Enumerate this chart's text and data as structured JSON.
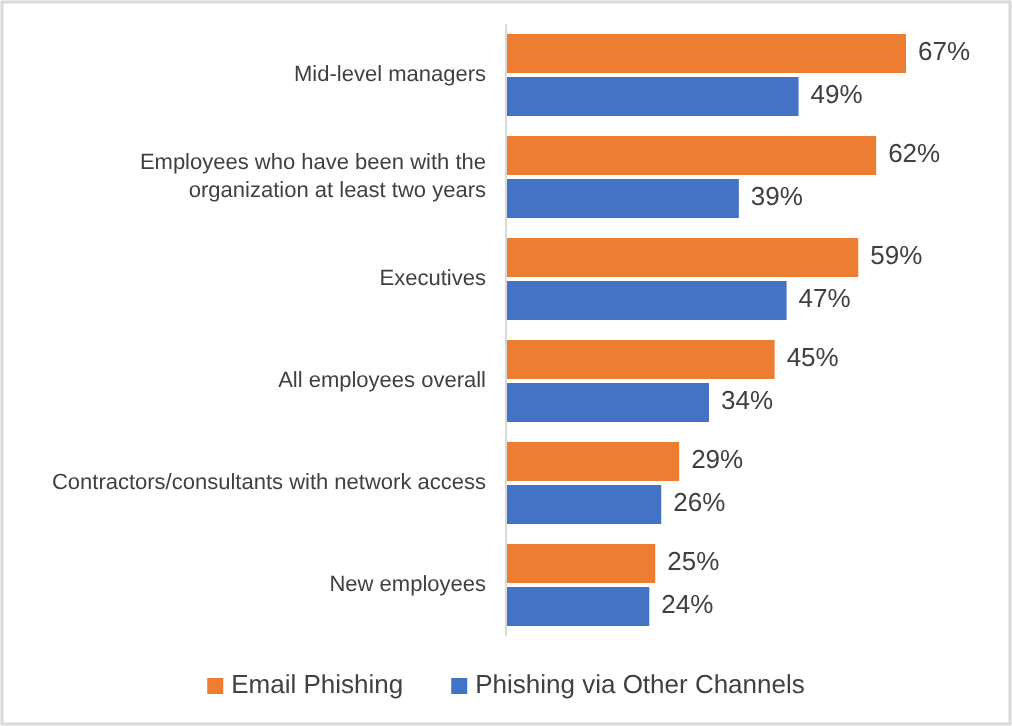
{
  "chart_data": {
    "type": "bar",
    "orientation": "horizontal",
    "categories": [
      "Mid-level managers",
      "Employees who have been with the organization at least two years",
      "Executives",
      "All employees overall",
      "Contractors/consultants with network access",
      "New employees"
    ],
    "series": [
      {
        "name": "Email Phishing",
        "color": "#ed7d31",
        "values": [
          67,
          62,
          59,
          45,
          29,
          25
        ],
        "value_labels": [
          "67%",
          "62%",
          "59%",
          "45%",
          "29%",
          "25%"
        ]
      },
      {
        "name": "Phishing via Other Channels",
        "color": "#4472c4",
        "values": [
          49,
          39,
          47,
          34,
          26,
          24
        ],
        "value_labels": [
          "49%",
          "39%",
          "47%",
          "34%",
          "26%",
          "24%"
        ]
      }
    ],
    "legend": "bottom",
    "grid": false
  }
}
